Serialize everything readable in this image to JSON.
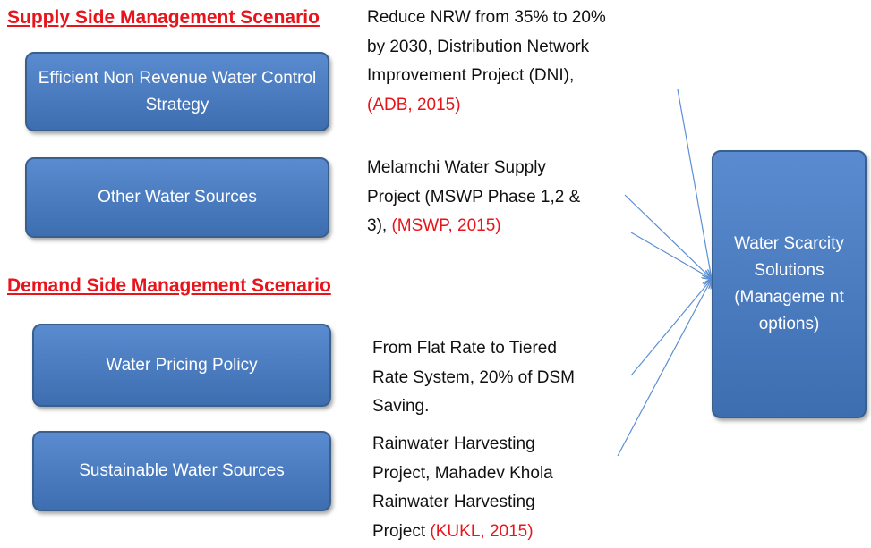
{
  "supply": {
    "heading": "Supply Side Management Scenario",
    "items": [
      {
        "box": "Efficient Non Revenue Water Control Strategy",
        "lines": [
          "Reduce NRW from 35% to 20%",
          "by 2030, Distribution Network",
          "Improvement Project (DNI),"
        ],
        "citation": "(ADB, 2015)"
      },
      {
        "box": "Other Water Sources",
        "lines": [
          "Melamchi Water Supply",
          "Project (MSWP Phase 1,2 &",
          "3),"
        ],
        "citation": "(MSWP, 2015)"
      }
    ]
  },
  "demand": {
    "heading": "Demand Side Management Scenario",
    "items": [
      {
        "box": "Water Pricing Policy",
        "lines": [
          "From Flat Rate to Tiered",
          "Rate System, 20% of DSM",
          "Saving."
        ]
      },
      {
        "box": "Sustainable Water Sources",
        "lines": [
          "Rainwater Harvesting",
          "Project, Mahadev Khola",
          "Rainwater Harvesting",
          "Project"
        ],
        "citation": "(KUKL, 2015)"
      }
    ]
  },
  "target": {
    "label": "Water Scarcity Solutions (Manageme nt options)"
  }
}
